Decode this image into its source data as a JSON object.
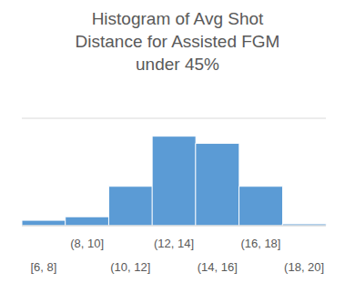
{
  "chart_data": {
    "type": "histogram",
    "title": "Histogram of Avg Shot Distance for Assisted FGM under 45%",
    "categories": [
      "[6, 8]",
      "(8, 10]",
      "(10, 12]",
      "(12, 14]",
      "(14, 16]",
      "(16, 18]",
      "(18, 20]"
    ],
    "values": [
      0.3,
      0.5,
      2.2,
      5.0,
      4.6,
      2.2,
      0.1
    ],
    "color": "#5b9bd5",
    "ylim": [
      0,
      6
    ],
    "yticks": [
      0,
      1,
      2,
      3,
      4,
      5,
      6
    ],
    "grid": true,
    "tick_labels": "x"
  }
}
